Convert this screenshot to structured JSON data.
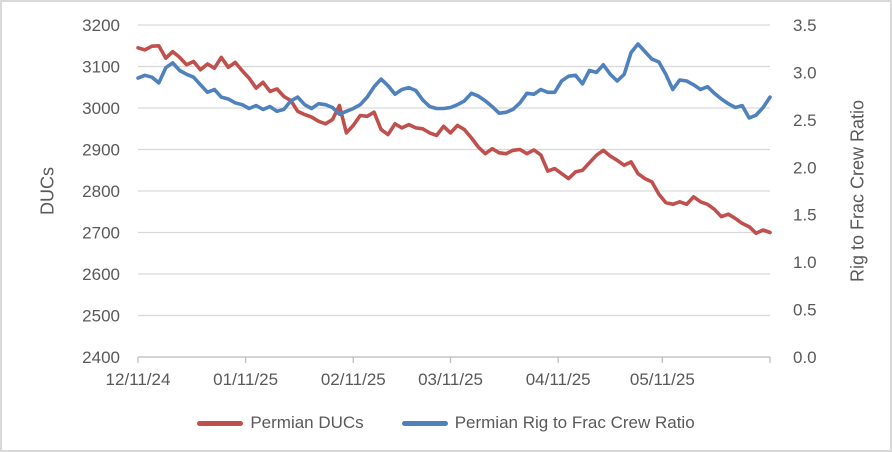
{
  "window": {
    "background": "#ffffff",
    "border_color": "#d9d9d9"
  },
  "colors": {
    "grid": "#d9d9d9",
    "axis_line": "#bfbfbf",
    "tick_text": "#595959",
    "series_red": "#c0504d",
    "series_blue": "#4f81bd"
  },
  "chart_data": {
    "type": "line",
    "title": "",
    "grid": true,
    "legend_position": "bottom",
    "x": {
      "tick_labels": [
        "12/11/24",
        "01/11/25",
        "02/11/25",
        "03/11/25",
        "04/11/25",
        "05/11/25"
      ],
      "tick_days": [
        0,
        31,
        62,
        90,
        121,
        151,
        182
      ],
      "max_day": 182,
      "sample_interval_days": 2
    },
    "y_left": {
      "label": "DUCs",
      "min": 2400,
      "max": 3200,
      "tick_values": [
        3200,
        3100,
        3000,
        2900,
        2800,
        2700,
        2600,
        2500,
        2400
      ],
      "tick_labels": [
        "3200",
        "3100",
        "3000",
        "2900",
        "2800",
        "2700",
        "2600",
        "2500",
        "2400"
      ]
    },
    "y_right": {
      "label": "Rig to Frac Crew Ratio",
      "min": 0.0,
      "max": 3.5,
      "tick_values": [
        3.5,
        3.0,
        2.5,
        2.0,
        1.5,
        1.0,
        0.5,
        0.0
      ],
      "tick_labels": [
        "3.5",
        "3.0",
        "2.5",
        "2.0",
        "1.5",
        "1.0",
        "0.5",
        "0.0"
      ]
    },
    "series": [
      {
        "name": "Permian DUCs",
        "axis": "left",
        "color": "#c0504d",
        "values": [
          3145,
          3140,
          3149,
          3150,
          3120,
          3136,
          3122,
          3104,
          3112,
          3092,
          3106,
          3096,
          3122,
          3098,
          3110,
          3090,
          3072,
          3048,
          3062,
          3040,
          3046,
          3028,
          3018,
          2992,
          2984,
          2978,
          2968,
          2962,
          2972,
          3006,
          2940,
          2958,
          2982,
          2980,
          2990,
          2948,
          2936,
          2962,
          2952,
          2960,
          2952,
          2950,
          2940,
          2934,
          2956,
          2940,
          2958,
          2948,
          2928,
          2906,
          2890,
          2902,
          2892,
          2890,
          2898,
          2900,
          2890,
          2899,
          2887,
          2848,
          2854,
          2842,
          2830,
          2846,
          2850,
          2868,
          2886,
          2898,
          2884,
          2874,
          2862,
          2870,
          2842,
          2830,
          2822,
          2792,
          2772,
          2768,
          2774,
          2768,
          2786,
          2774,
          2768,
          2756,
          2738,
          2744,
          2734,
          2722,
          2714,
          2698,
          2706,
          2700
        ]
      },
      {
        "name": "Permian Rig to Frac Crew Ratio",
        "axis": "right",
        "color": "#4f81bd",
        "values": [
          2.94,
          2.97,
          2.95,
          2.89,
          3.05,
          3.1,
          3.02,
          2.98,
          2.95,
          2.87,
          2.79,
          2.82,
          2.74,
          2.72,
          2.68,
          2.66,
          2.62,
          2.65,
          2.61,
          2.64,
          2.59,
          2.61,
          2.7,
          2.74,
          2.66,
          2.62,
          2.67,
          2.66,
          2.63,
          2.56,
          2.59,
          2.62,
          2.66,
          2.74,
          2.85,
          2.93,
          2.86,
          2.77,
          2.82,
          2.84,
          2.81,
          2.71,
          2.64,
          2.62,
          2.62,
          2.63,
          2.66,
          2.7,
          2.78,
          2.75,
          2.7,
          2.64,
          2.57,
          2.58,
          2.61,
          2.68,
          2.78,
          2.77,
          2.82,
          2.79,
          2.79,
          2.91,
          2.96,
          2.97,
          2.88,
          3.02,
          3.0,
          3.08,
          2.98,
          2.91,
          2.98,
          3.21,
          3.3,
          3.22,
          3.14,
          3.11,
          2.98,
          2.82,
          2.92,
          2.91,
          2.87,
          2.82,
          2.85,
          2.78,
          2.72,
          2.67,
          2.63,
          2.65,
          2.52,
          2.55,
          2.63,
          2.74
        ]
      }
    ]
  },
  "legend": {
    "items": [
      {
        "label": "Permian DUCs",
        "color": "#c0504d"
      },
      {
        "label": "Permian Rig to Frac Crew Ratio",
        "color": "#4f81bd"
      }
    ]
  }
}
